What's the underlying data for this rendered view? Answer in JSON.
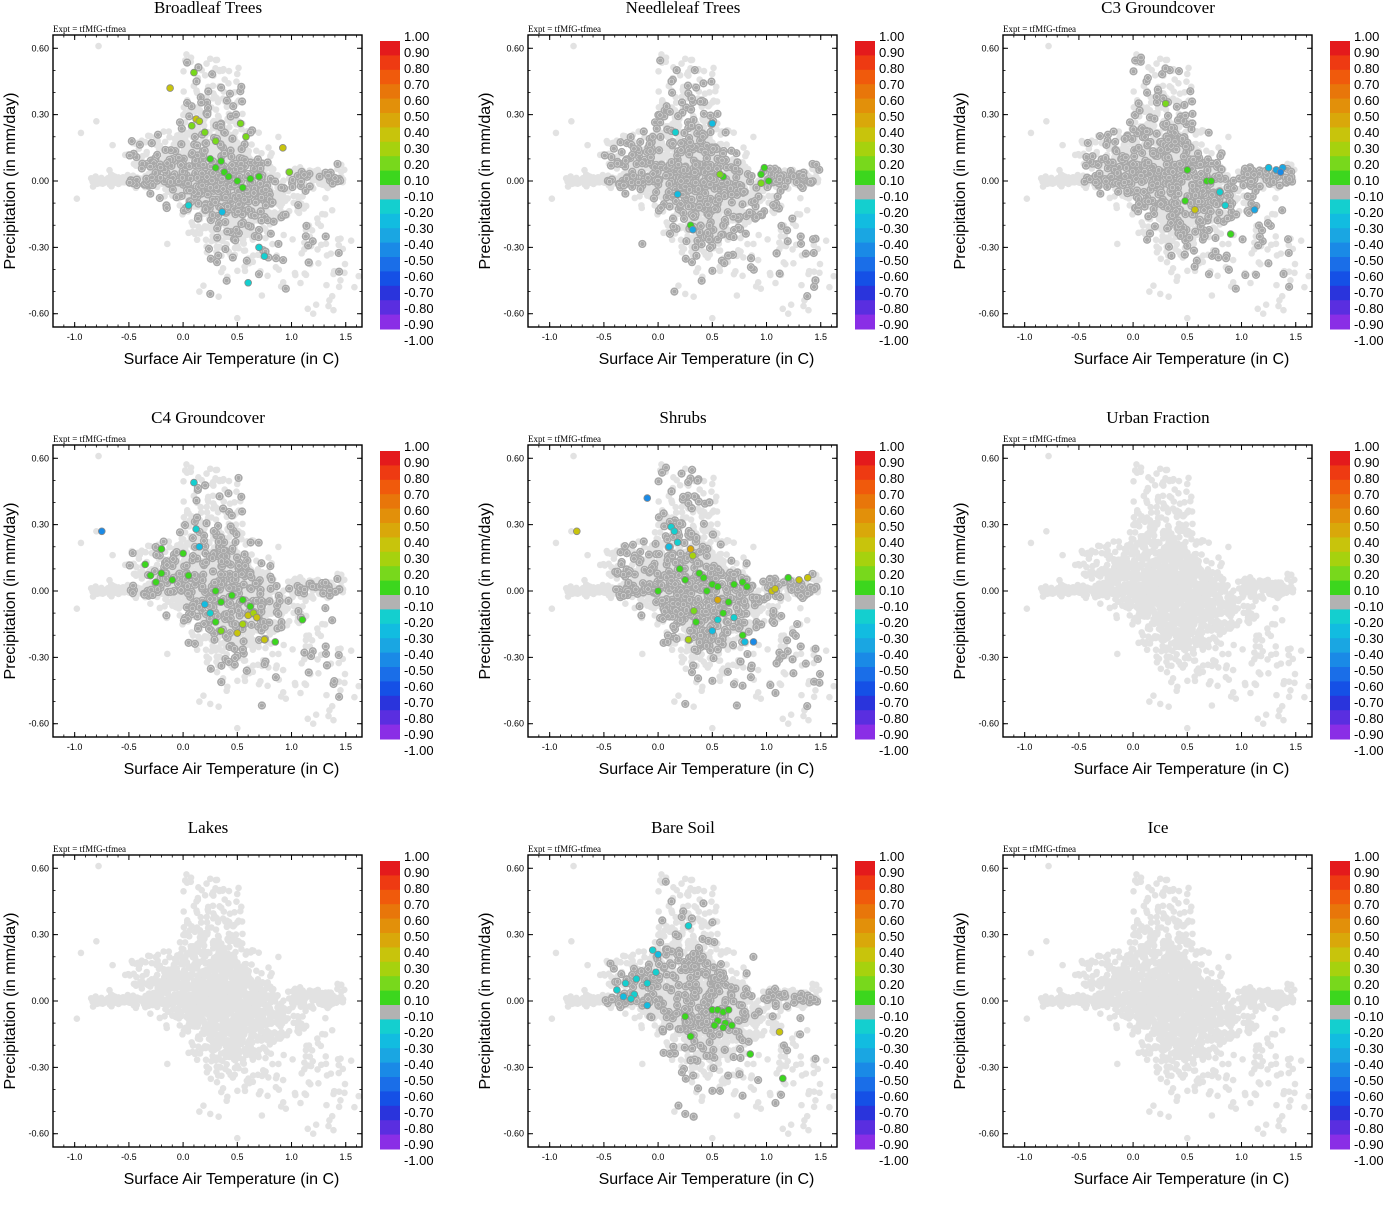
{
  "figure": {
    "expt_label": "Expt = tfMfG-tfmea",
    "xlabel": "Surface Air Temperature (in C)",
    "ylabel": "Precipitation (in mm/day)",
    "xlim": [
      -1.2,
      1.65
    ],
    "ylim": [
      -0.66,
      0.66
    ],
    "xticks": [
      "-1.0",
      "-0.5",
      "0.0",
      "0.5",
      "1.0",
      "1.5"
    ],
    "yticks": [
      "0.60",
      "0.30",
      "0.00",
      "-0.30",
      "-0.60"
    ]
  },
  "colorbar": {
    "labels": [
      "1.00",
      "0.90",
      "0.80",
      "0.70",
      "0.60",
      "0.50",
      "0.40",
      "0.30",
      "0.20",
      "0.10",
      "-0.10",
      "-0.20",
      "-0.30",
      "-0.40",
      "-0.50",
      "-0.60",
      "-0.70",
      "-0.80",
      "-0.90",
      "-1.00"
    ],
    "colors": [
      "#e41a1c",
      "#ee3a12",
      "#f05a0c",
      "#e8760a",
      "#e2900a",
      "#d9a80a",
      "#c8c40c",
      "#a6d20e",
      "#78d81c",
      "#3cd61e",
      "#b2b2b2",
      "#14cfcf",
      "#12bce0",
      "#1aa6e2",
      "#1a8ae6",
      "#1a6ee8",
      "#1550e6",
      "#2a34dc",
      "#5a2ee0",
      "#8a2ee6"
    ]
  },
  "colors": {
    "light_points": "#e2e2e2",
    "medium_points": "#a9a9a9",
    "axis": "#000000"
  },
  "chart_data": [
    {
      "type": "scatter",
      "title": "Broadleaf Trees",
      "highlights": [
        {
          "x": 0.1,
          "y": 0.49,
          "c": 0.2
        },
        {
          "x": -0.12,
          "y": 0.42,
          "c": 0.4
        },
        {
          "x": 0.12,
          "y": 0.28,
          "c": 0.4
        },
        {
          "x": 0.15,
          "y": 0.27,
          "c": 0.3
        },
        {
          "x": 0.08,
          "y": 0.25,
          "c": 0.2
        },
        {
          "x": 0.2,
          "y": 0.22,
          "c": 0.2
        },
        {
          "x": 0.3,
          "y": 0.18,
          "c": 0.2
        },
        {
          "x": 0.53,
          "y": 0.26,
          "c": 0.2
        },
        {
          "x": 0.58,
          "y": 0.2,
          "c": 0.2
        },
        {
          "x": 0.92,
          "y": 0.15,
          "c": 0.4
        },
        {
          "x": 0.25,
          "y": 0.1,
          "c": 0.1
        },
        {
          "x": 0.35,
          "y": 0.09,
          "c": 0.1
        },
        {
          "x": 0.38,
          "y": 0.04,
          "c": 0.1
        },
        {
          "x": 0.42,
          "y": 0.02,
          "c": 0.1
        },
        {
          "x": 0.5,
          "y": 0.0,
          "c": 0.1
        },
        {
          "x": 0.62,
          "y": 0.01,
          "c": 0.1
        },
        {
          "x": 0.7,
          "y": 0.02,
          "c": 0.1
        },
        {
          "x": 0.55,
          "y": -0.03,
          "c": 0.1
        },
        {
          "x": 0.98,
          "y": 0.04,
          "c": 0.2
        },
        {
          "x": 0.3,
          "y": 0.06,
          "c": 0.1
        },
        {
          "x": 0.05,
          "y": -0.11,
          "c": -0.2
        },
        {
          "x": 0.36,
          "y": -0.14,
          "c": -0.3
        },
        {
          "x": 0.7,
          "y": -0.3,
          "c": -0.2
        },
        {
          "x": 0.75,
          "y": -0.34,
          "c": -0.2
        },
        {
          "x": 0.6,
          "y": -0.46,
          "c": -0.2
        }
      ]
    },
    {
      "type": "scatter",
      "title": "Needleleaf Trees",
      "highlights": [
        {
          "x": 0.16,
          "y": 0.22,
          "c": -0.2
        },
        {
          "x": 0.5,
          "y": 0.26,
          "c": -0.3
        },
        {
          "x": 0.6,
          "y": 0.02,
          "c": 0.1
        },
        {
          "x": 0.57,
          "y": 0.03,
          "c": 0.2
        },
        {
          "x": 0.95,
          "y": 0.03,
          "c": 0.1
        },
        {
          "x": 0.98,
          "y": 0.06,
          "c": 0.1
        },
        {
          "x": 1.02,
          "y": 0.0,
          "c": 0.1
        },
        {
          "x": 0.95,
          "y": -0.01,
          "c": 0.2
        },
        {
          "x": 0.18,
          "y": -0.06,
          "c": -0.3
        },
        {
          "x": 0.3,
          "y": -0.2,
          "c": 0.1
        },
        {
          "x": 0.32,
          "y": -0.22,
          "c": -0.4
        }
      ]
    },
    {
      "type": "scatter",
      "title": "C3 Groundcover",
      "highlights": [
        {
          "x": 0.3,
          "y": 0.35,
          "c": 0.2
        },
        {
          "x": 0.5,
          "y": 0.05,
          "c": 0.1
        },
        {
          "x": 0.68,
          "y": 0.0,
          "c": 0.1
        },
        {
          "x": 0.72,
          "y": 0.0,
          "c": 0.1
        },
        {
          "x": 0.48,
          "y": -0.09,
          "c": 0.1
        },
        {
          "x": 0.57,
          "y": -0.13,
          "c": 0.4
        },
        {
          "x": 0.85,
          "y": -0.11,
          "c": -0.2
        },
        {
          "x": 0.9,
          "y": -0.24,
          "c": 0.1
        },
        {
          "x": 1.25,
          "y": 0.06,
          "c": -0.3
        },
        {
          "x": 1.32,
          "y": 0.05,
          "c": -0.4
        },
        {
          "x": 1.38,
          "y": 0.06,
          "c": -0.4
        },
        {
          "x": 1.36,
          "y": 0.04,
          "c": -0.5
        },
        {
          "x": 1.12,
          "y": -0.13,
          "c": -0.4
        },
        {
          "x": 0.8,
          "y": -0.05,
          "c": -0.2
        }
      ]
    },
    {
      "type": "scatter",
      "title": "C4 Groundcover",
      "highlights": [
        {
          "x": 0.1,
          "y": 0.49,
          "c": -0.2
        },
        {
          "x": -0.75,
          "y": 0.27,
          "c": -0.5
        },
        {
          "x": 0.12,
          "y": 0.28,
          "c": -0.2
        },
        {
          "x": 0.15,
          "y": 0.2,
          "c": -0.3
        },
        {
          "x": 0.0,
          "y": 0.17,
          "c": 0.1
        },
        {
          "x": -0.2,
          "y": 0.19,
          "c": 0.1
        },
        {
          "x": -0.35,
          "y": 0.12,
          "c": 0.1
        },
        {
          "x": -0.3,
          "y": 0.07,
          "c": 0.1
        },
        {
          "x": -0.2,
          "y": 0.08,
          "c": 0.1
        },
        {
          "x": -0.1,
          "y": 0.05,
          "c": 0.1
        },
        {
          "x": 0.05,
          "y": 0.07,
          "c": 0.1
        },
        {
          "x": -0.25,
          "y": 0.04,
          "c": 0.1
        },
        {
          "x": 0.3,
          "y": 0.0,
          "c": 0.1
        },
        {
          "x": 0.45,
          "y": -0.02,
          "c": 0.1
        },
        {
          "x": 0.55,
          "y": -0.04,
          "c": 0.1
        },
        {
          "x": 0.35,
          "y": -0.05,
          "c": 0.1
        },
        {
          "x": 0.62,
          "y": -0.07,
          "c": 0.1
        },
        {
          "x": 0.25,
          "y": -0.1,
          "c": -0.2
        },
        {
          "x": 0.6,
          "y": -0.11,
          "c": 0.4
        },
        {
          "x": 0.65,
          "y": -0.1,
          "c": 0.3
        },
        {
          "x": 0.68,
          "y": -0.12,
          "c": 0.4
        },
        {
          "x": 0.55,
          "y": -0.15,
          "c": 0.3
        },
        {
          "x": 0.5,
          "y": -0.19,
          "c": 0.4
        },
        {
          "x": 0.75,
          "y": -0.22,
          "c": 0.4
        },
        {
          "x": 0.85,
          "y": -0.23,
          "c": 0.1
        },
        {
          "x": 1.1,
          "y": -0.13,
          "c": 0.1
        },
        {
          "x": 0.3,
          "y": -0.14,
          "c": 0.1
        },
        {
          "x": 0.35,
          "y": -0.18,
          "c": 0.2
        },
        {
          "x": 0.2,
          "y": -0.06,
          "c": -0.3
        }
      ]
    },
    {
      "type": "scatter",
      "title": "Shrubs",
      "highlights": [
        {
          "x": -0.1,
          "y": 0.42,
          "c": -0.5
        },
        {
          "x": -0.75,
          "y": 0.27,
          "c": 0.4
        },
        {
          "x": 0.12,
          "y": 0.29,
          "c": -0.2
        },
        {
          "x": 0.15,
          "y": 0.27,
          "c": -0.2
        },
        {
          "x": 0.18,
          "y": 0.22,
          "c": -0.2
        },
        {
          "x": 0.1,
          "y": 0.2,
          "c": -0.3
        },
        {
          "x": 0.3,
          "y": 0.19,
          "c": 0.5
        },
        {
          "x": 0.32,
          "y": 0.16,
          "c": 0.3
        },
        {
          "x": 0.2,
          "y": 0.1,
          "c": 0.1
        },
        {
          "x": 0.25,
          "y": 0.05,
          "c": 0.1
        },
        {
          "x": 0.38,
          "y": 0.08,
          "c": 0.1
        },
        {
          "x": 0.42,
          "y": 0.06,
          "c": 0.1
        },
        {
          "x": 0.5,
          "y": 0.03,
          "c": 0.1
        },
        {
          "x": 0.45,
          "y": 0.0,
          "c": 0.1
        },
        {
          "x": 0.55,
          "y": 0.02,
          "c": 0.1
        },
        {
          "x": 0.7,
          "y": 0.03,
          "c": 0.1
        },
        {
          "x": 0.78,
          "y": 0.04,
          "c": 0.1
        },
        {
          "x": 0.82,
          "y": 0.02,
          "c": 0.1
        },
        {
          "x": 1.05,
          "y": 0.0,
          "c": 0.4
        },
        {
          "x": 1.08,
          "y": 0.01,
          "c": 0.4
        },
        {
          "x": 1.2,
          "y": 0.06,
          "c": 0.1
        },
        {
          "x": 1.3,
          "y": 0.05,
          "c": 0.4
        },
        {
          "x": 1.38,
          "y": 0.06,
          "c": 0.4
        },
        {
          "x": 0.0,
          "y": 0.0,
          "c": 0.1
        },
        {
          "x": 0.55,
          "y": -0.04,
          "c": 0.5
        },
        {
          "x": 0.65,
          "y": -0.05,
          "c": 0.1
        },
        {
          "x": 0.33,
          "y": -0.09,
          "c": 0.2
        },
        {
          "x": 0.35,
          "y": -0.14,
          "c": 0.1
        },
        {
          "x": 0.55,
          "y": -0.13,
          "c": -0.2
        },
        {
          "x": 0.5,
          "y": -0.18,
          "c": -0.3
        },
        {
          "x": 0.78,
          "y": -0.2,
          "c": 0.1
        },
        {
          "x": 0.8,
          "y": -0.23,
          "c": -0.3
        },
        {
          "x": 0.88,
          "y": -0.23,
          "c": -0.5
        },
        {
          "x": 0.28,
          "y": -0.22,
          "c": 0.3
        },
        {
          "x": 0.6,
          "y": -0.1,
          "c": 0.1
        },
        {
          "x": 0.7,
          "y": -0.12,
          "c": -0.2
        }
      ]
    },
    {
      "type": "scatter",
      "title": "Urban Fraction",
      "highlights": []
    },
    {
      "type": "scatter",
      "title": "Lakes",
      "highlights": []
    },
    {
      "type": "scatter",
      "title": "Bare Soil",
      "highlights": [
        {
          "x": 0.28,
          "y": 0.34,
          "c": -0.2
        },
        {
          "x": -0.05,
          "y": 0.23,
          "c": -0.2
        },
        {
          "x": 0.0,
          "y": 0.21,
          "c": -0.3
        },
        {
          "x": -0.02,
          "y": 0.13,
          "c": -0.2
        },
        {
          "x": -0.2,
          "y": 0.1,
          "c": -0.2
        },
        {
          "x": -0.1,
          "y": 0.08,
          "c": -0.2
        },
        {
          "x": -0.3,
          "y": 0.08,
          "c": -0.2
        },
        {
          "x": -0.38,
          "y": 0.05,
          "c": -0.2
        },
        {
          "x": -0.32,
          "y": 0.02,
          "c": -0.3
        },
        {
          "x": -0.22,
          "y": 0.03,
          "c": -0.2
        },
        {
          "x": -0.25,
          "y": 0.01,
          "c": -0.2
        },
        {
          "x": -0.1,
          "y": -0.02,
          "c": -0.3
        },
        {
          "x": 0.5,
          "y": -0.04,
          "c": 0.1
        },
        {
          "x": 0.55,
          "y": -0.04,
          "c": 0.1
        },
        {
          "x": 0.6,
          "y": -0.05,
          "c": 0.1
        },
        {
          "x": 0.65,
          "y": -0.04,
          "c": 0.1
        },
        {
          "x": 0.25,
          "y": -0.07,
          "c": 0.1
        },
        {
          "x": 0.55,
          "y": -0.09,
          "c": 0.1
        },
        {
          "x": 0.62,
          "y": -0.1,
          "c": 0.1
        },
        {
          "x": 0.52,
          "y": -0.11,
          "c": 0.1
        },
        {
          "x": 0.6,
          "y": -0.12,
          "c": 0.1
        },
        {
          "x": 0.68,
          "y": -0.11,
          "c": 0.1
        },
        {
          "x": 0.3,
          "y": -0.16,
          "c": 0.1
        },
        {
          "x": 1.12,
          "y": -0.14,
          "c": 0.4
        },
        {
          "x": 0.85,
          "y": -0.24,
          "c": 0.1
        },
        {
          "x": 1.15,
          "y": -0.35,
          "c": 0.1
        }
      ]
    },
    {
      "type": "scatter",
      "title": "Ice",
      "highlights": []
    }
  ]
}
